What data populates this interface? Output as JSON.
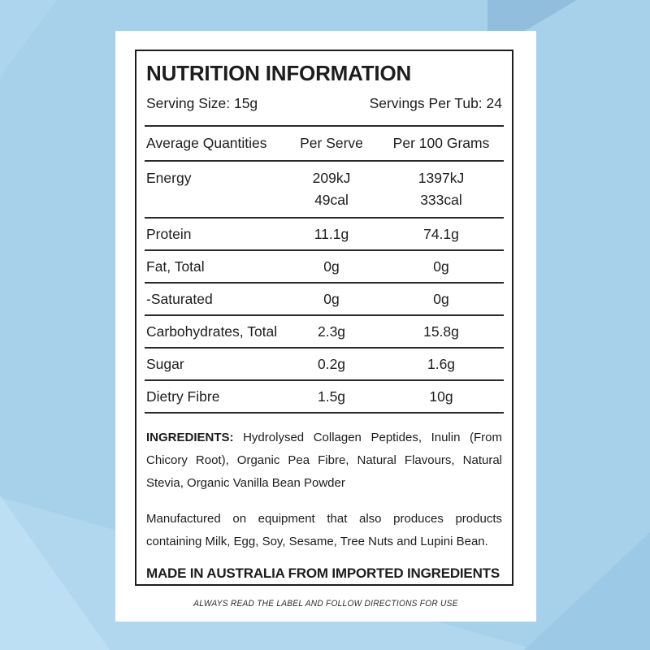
{
  "colors": {
    "background": "#a7d0ea",
    "background_facet_dark": "#92bedd",
    "background_facet_light": "#bddff4",
    "card": "#ffffff",
    "border": "#1c1c1c",
    "text": "#1d1d1d"
  },
  "panel": {
    "title": "NUTRITION INFORMATION",
    "serving_size": "Serving Size: 15g",
    "servings_per_tub": "Servings Per Tub: 24"
  },
  "table": {
    "headers": [
      "Average Quantities",
      "Per Serve",
      "Per 100 Grams"
    ],
    "rows": [
      {
        "label": "Energy",
        "per_serve": [
          "209kJ",
          "49cal"
        ],
        "per_100g": [
          "1397kJ",
          "333cal"
        ]
      },
      {
        "label": "Protein",
        "per_serve": [
          "11.1g"
        ],
        "per_100g": [
          "74.1g"
        ]
      },
      {
        "label": "Fat, Total",
        "per_serve": [
          "0g"
        ],
        "per_100g": [
          "0g"
        ]
      },
      {
        "label": "-Saturated",
        "per_serve": [
          "0g"
        ],
        "per_100g": [
          "0g"
        ]
      },
      {
        "label": "Carbohydrates, Total",
        "per_serve": [
          "2.3g"
        ],
        "per_100g": [
          "15.8g"
        ]
      },
      {
        "label": "Sugar",
        "per_serve": [
          "0.2g"
        ],
        "per_100g": [
          "1.6g"
        ]
      },
      {
        "label": "Dietry Fibre",
        "per_serve": [
          "1.5g"
        ],
        "per_100g": [
          "10g"
        ]
      }
    ]
  },
  "footer": {
    "ingredients_label": "INGREDIENTS:",
    "ingredients_text": "Hydrolysed Collagen Peptides, Inulin (From Chicory Root), Organic Pea Fibre, Natural Flavours, Natural Stevia, Organic Vanilla Bean Powder",
    "allergen_text": "Manufactured on equipment that also produces products containing Milk, Egg, Soy, Sesame, Tree Nuts and Lupini Bean.",
    "made_in": "MADE IN AUSTRALIA FROM IMPORTED INGREDIENTS"
  },
  "disclaimer": "ALWAYS READ THE LABEL AND FOLLOW DIRECTIONS FOR USE"
}
